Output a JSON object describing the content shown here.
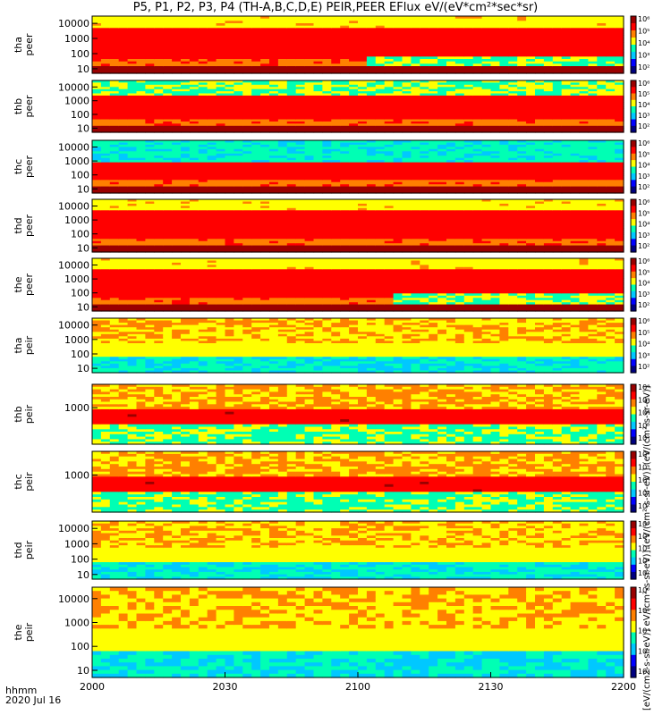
{
  "title": "P5, P1, P2, P3, P4 (TH-A,B,C,D,E) PEIR,PEER EFlux eV/(eV*cm²*sec*sr)",
  "colorbar_label": "[eV/(cm2-s-sr-eV)] eV/(cm²-s-sr-eV)] (eV/(cm²-s-sr-eV)] (eV/(cm²-s-sr-eV)]",
  "colors": {
    "background": "#ffffff",
    "colormap": [
      "#000080",
      "#0000ff",
      "#00c8ff",
      "#00ffb4",
      "#ffff00",
      "#ff8000",
      "#ff0000",
      "#9a0000"
    ]
  },
  "chart_data": {
    "type": "heatmap",
    "x_time_label": "hhmm",
    "x_date_label": "2020 Jul 16",
    "x_range": [
      "2000",
      "2200"
    ],
    "x_ticks": [
      "2000",
      "2030",
      "2100",
      "2130",
      "2200"
    ],
    "colorbar_ticks": [
      "10⁶",
      "10⁵",
      "10⁴",
      "10³",
      "10²"
    ],
    "panels": [
      {
        "name": "tha peer",
        "probe": "tha",
        "species": "peer",
        "ylim": [
          5,
          30000
        ],
        "yticks": [
          "10000",
          "1000",
          "100",
          "10"
        ]
      },
      {
        "name": "thb peer",
        "probe": "thb",
        "species": "peer",
        "ylim": [
          5,
          30000
        ],
        "yticks": [
          "10000",
          "1000",
          "100",
          "10"
        ]
      },
      {
        "name": "thc peer",
        "probe": "thc",
        "species": "peer",
        "ylim": [
          5,
          30000
        ],
        "yticks": [
          "10000",
          "1000",
          "100",
          "10"
        ]
      },
      {
        "name": "thd peer",
        "probe": "thd",
        "species": "peer",
        "ylim": [
          5,
          30000
        ],
        "yticks": [
          "10000",
          "1000",
          "100",
          "10"
        ]
      },
      {
        "name": "the peer",
        "probe": "the",
        "species": "peer",
        "ylim": [
          5,
          30000
        ],
        "yticks": [
          "10000",
          "1000",
          "100",
          "10"
        ]
      },
      {
        "name": "tha peir",
        "probe": "tha",
        "species": "peir",
        "ylim": [
          5,
          30000
        ],
        "yticks": [
          "10000",
          "1000",
          "100",
          "10"
        ]
      },
      {
        "name": "thb peir",
        "probe": "thb",
        "species": "peir",
        "ylim": [
          5,
          30000
        ],
        "yticks": [
          "1000"
        ]
      },
      {
        "name": "thc peir",
        "probe": "thc",
        "species": "peir",
        "ylim": [
          5,
          30000
        ],
        "yticks": [
          "1000"
        ]
      },
      {
        "name": "thd peir",
        "probe": "thd",
        "species": "peir",
        "ylim": [
          5,
          30000
        ],
        "yticks": [
          "10000",
          "1000",
          "100",
          "10"
        ]
      },
      {
        "name": "the peir",
        "probe": "the",
        "species": "peir",
        "ylim": [
          5,
          30000
        ],
        "yticks": [
          "10000",
          "1000",
          "100",
          "10"
        ]
      }
    ]
  }
}
